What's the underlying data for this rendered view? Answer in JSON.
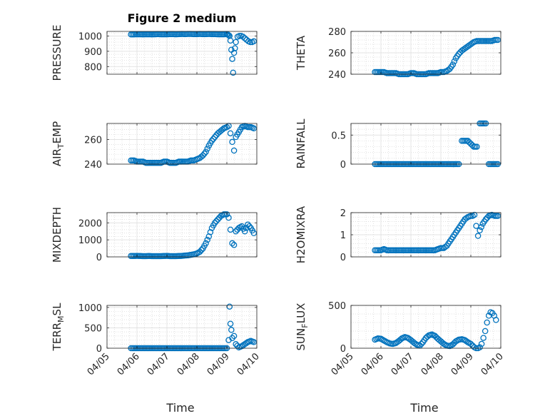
{
  "figure_title": "Figure 2 medium",
  "style": {
    "marker_color": "#0072BD",
    "grid_color": "#d6d6d6",
    "axis_color": "#262626"
  },
  "chart_data": [
    {
      "id": "pressure",
      "type": "scatter",
      "title": "Figure 2 medium",
      "ylabel_parts": [
        "PRESSURE"
      ],
      "yticks": [
        800,
        900,
        1000
      ],
      "ytick_labels": [
        "800",
        "900",
        "1000"
      ],
      "ylim": [
        750,
        1030
      ],
      "xlim": [
        "04/05",
        "04/10"
      ],
      "xticks": [
        "04/05",
        "04/06",
        "04/07",
        "04/08",
        "04/09",
        "04/10"
      ],
      "show_xticklabels": false,
      "grid": true,
      "marker": "open-circle",
      "x": [
        "04/05 19:12",
        "04/05 21:36",
        "04/06 00:00",
        "04/06 02:24",
        "04/06 04:48",
        "04/06 07:12",
        "04/06 09:36",
        "04/06 12:00",
        "04/06 14:24",
        "04/06 16:48",
        "04/06 19:12",
        "04/06 21:36",
        "04/07 00:00",
        "04/07 02:24",
        "04/07 04:48",
        "04/07 07:12",
        "04/07 09:36",
        "04/07 12:00",
        "04/07 14:24",
        "04/07 16:48",
        "04/07 19:12",
        "04/07 21:36",
        "04/08 00:00",
        "04/08 02:24",
        "04/08 04:48",
        "04/08 07:12",
        "04/08 09:36",
        "04/08 12:00",
        "04/08 14:24",
        "04/08 16:48",
        "04/08 19:12",
        "04/08 21:36",
        "04/09 00:00",
        "04/09 00:43",
        "04/09 01:26",
        "04/09 02:10",
        "04/09 02:53",
        "04/09 03:36",
        "04/09 04:19",
        "04/09 05:02",
        "04/09 05:46",
        "04/09 06:29",
        "04/09 07:12",
        "04/09 08:38",
        "04/09 10:05",
        "04/09 11:31",
        "04/09 12:58",
        "04/09 14:24",
        "04/09 15:50",
        "04/09 17:17",
        "04/09 18:43",
        "04/09 20:10",
        "04/09 21:36"
      ],
      "y": [
        1010,
        1010,
        1011,
        1011,
        1010,
        1011,
        1011,
        1010,
        1011,
        1012,
        1011,
        1011,
        1011,
        1012,
        1012,
        1011,
        1012,
        1013,
        1012,
        1013,
        1013,
        1012,
        1012,
        1013,
        1012,
        1012,
        1013,
        1012,
        1012,
        1011,
        1011,
        1011,
        1012,
        1010,
        1005,
        1000,
        970,
        910,
        850,
        760,
        890,
        920,
        960,
        995,
        1000,
        1000,
        995,
        985,
        975,
        965,
        960,
        960,
        965
      ]
    },
    {
      "id": "theta",
      "type": "scatter",
      "ylabel_parts": [
        "THETA"
      ],
      "yticks": [
        240,
        260,
        280
      ],
      "ytick_labels": [
        "240",
        "260",
        "280"
      ],
      "ylim": [
        240,
        280
      ],
      "xlim": [
        "04/05",
        "04/10"
      ],
      "xticks": [
        "04/05",
        "04/06",
        "04/07",
        "04/08",
        "04/09",
        "04/10"
      ],
      "show_xticklabels": false,
      "grid": true,
      "marker": "open-circle",
      "x": [
        "04/05 19:12",
        "04/05 21:36",
        "04/06 00:00",
        "04/06 02:24",
        "04/06 04:48",
        "04/06 07:12",
        "04/06 09:36",
        "04/06 12:00",
        "04/06 14:24",
        "04/06 16:48",
        "04/06 19:12",
        "04/06 21:36",
        "04/07 00:00",
        "04/07 02:24",
        "04/07 04:48",
        "04/07 07:12",
        "04/07 09:36",
        "04/07 12:00",
        "04/07 14:24",
        "04/07 16:48",
        "04/07 19:12",
        "04/07 21:36",
        "04/08 00:00",
        "04/08 02:24",
        "04/08 04:48",
        "04/08 07:12",
        "04/08 09:36",
        "04/08 12:00",
        "04/08 14:24",
        "04/08 16:48",
        "04/08 19:12",
        "04/08 21:36",
        "04/09 00:00",
        "04/09 02:24",
        "04/09 04:48",
        "04/09 07:12",
        "04/09 09:36",
        "04/09 12:00",
        "04/09 14:24",
        "04/09 16:48",
        "04/09 19:12",
        "04/09 21:36"
      ],
      "y": [
        242,
        242,
        242,
        242,
        241,
        241,
        241,
        241,
        240,
        240,
        240,
        240,
        241,
        241,
        240,
        240,
        240,
        240,
        241,
        241,
        241,
        241,
        242,
        242,
        243,
        245,
        249,
        255,
        259,
        262,
        264,
        266,
        268,
        270,
        271,
        271,
        271,
        271,
        271,
        271,
        272,
        272
      ]
    },
    {
      "id": "air_temp",
      "type": "scatter",
      "ylabel_parts": [
        "AIR",
        "T",
        "EMP"
      ],
      "yticks": [
        240,
        260
      ],
      "ytick_labels": [
        "240",
        "260"
      ],
      "ylim": [
        240,
        273
      ],
      "xlim": [
        "04/05",
        "04/10"
      ],
      "xticks": [
        "04/05",
        "04/06",
        "04/07",
        "04/08",
        "04/09",
        "04/10"
      ],
      "show_xticklabels": false,
      "grid": true,
      "marker": "open-circle",
      "x": [
        "04/05 19:12",
        "04/05 21:36",
        "04/06 00:00",
        "04/06 02:24",
        "04/06 04:48",
        "04/06 07:12",
        "04/06 09:36",
        "04/06 12:00",
        "04/06 14:24",
        "04/06 16:48",
        "04/06 19:12",
        "04/06 21:36",
        "04/07 00:00",
        "04/07 02:24",
        "04/07 04:48",
        "04/07 07:12",
        "04/07 09:36",
        "04/07 12:00",
        "04/07 14:24",
        "04/07 16:48",
        "04/07 19:12",
        "04/07 21:36",
        "04/08 00:00",
        "04/08 02:24",
        "04/08 04:48",
        "04/08 07:12",
        "04/08 09:36",
        "04/08 12:00",
        "04/08 14:24",
        "04/08 16:48",
        "04/08 19:12",
        "04/08 21:36",
        "04/09 00:00",
        "04/09 01:26",
        "04/09 02:53",
        "04/09 04:19",
        "04/09 05:46",
        "04/09 07:12",
        "04/09 09:36",
        "04/09 12:00",
        "04/09 14:24",
        "04/09 16:48",
        "04/09 19:12",
        "04/09 21:36"
      ],
      "y": [
        243,
        243,
        242,
        242,
        242,
        241,
        241,
        241,
        241,
        241,
        241,
        242,
        242,
        241,
        241,
        241,
        242,
        242,
        242,
        242,
        243,
        243,
        244,
        245,
        247,
        250,
        255,
        259,
        262,
        265,
        267,
        269,
        270,
        271,
        265,
        258,
        251,
        262,
        266,
        270,
        271,
        270,
        270,
        269
      ]
    },
    {
      "id": "rainfall",
      "type": "scatter",
      "ylabel_parts": [
        "RAINFALL"
      ],
      "yticks": [
        0,
        0.5
      ],
      "ytick_labels": [
        "0",
        "0.5"
      ],
      "ylim": [
        0,
        0.7
      ],
      "xlim": [
        "04/05",
        "04/10"
      ],
      "xticks": [
        "04/05",
        "04/06",
        "04/07",
        "04/08",
        "04/09",
        "04/10"
      ],
      "show_xticklabels": false,
      "grid": true,
      "marker": "open-circle",
      "x": [
        "04/05 19:12",
        "04/06 00:00",
        "04/06 04:48",
        "04/06 09:36",
        "04/06 14:24",
        "04/06 19:12",
        "04/07 00:00",
        "04/07 04:48",
        "04/07 09:36",
        "04/07 14:24",
        "04/07 19:12",
        "04/08 00:00",
        "04/08 04:48",
        "04/08 09:36",
        "04/08 12:00",
        "04/08 14:24",
        "04/08 16:48",
        "04/08 19:12",
        "04/08 21:36",
        "04/09 00:00",
        "04/09 02:24",
        "04/09 04:48",
        "04/09 07:12",
        "04/09 09:36",
        "04/09 12:00",
        "04/09 14:24",
        "04/09 16:48",
        "04/09 19:12",
        "04/09 21:36"
      ],
      "y": [
        0,
        0,
        0,
        0,
        0,
        0,
        0,
        0,
        0,
        0,
        0,
        0,
        0,
        0,
        0,
        0,
        0.4,
        0.4,
        0.4,
        0.35,
        0.3,
        0.3,
        0.7,
        0.7,
        0.7,
        0,
        0,
        0,
        0
      ]
    },
    {
      "id": "mixdepth",
      "type": "scatter",
      "ylabel_parts": [
        "MIXDEPTH"
      ],
      "yticks": [
        0,
        1000,
        2000
      ],
      "ytick_labels": [
        "0",
        "1000",
        "2000"
      ],
      "ylim": [
        0,
        2600
      ],
      "xlim": [
        "04/05",
        "04/10"
      ],
      "xticks": [
        "04/05",
        "04/06",
        "04/07",
        "04/08",
        "04/09",
        "04/10"
      ],
      "show_xticklabels": false,
      "grid": true,
      "marker": "open-circle",
      "x": [
        "04/05 19:12",
        "04/05 21:36",
        "04/06 00:00",
        "04/06 02:24",
        "04/06 04:48",
        "04/06 07:12",
        "04/06 09:36",
        "04/06 12:00",
        "04/06 14:24",
        "04/06 16:48",
        "04/06 19:12",
        "04/06 21:36",
        "04/07 00:00",
        "04/07 02:24",
        "04/07 04:48",
        "04/07 07:12",
        "04/07 09:36",
        "04/07 12:00",
        "04/07 14:24",
        "04/07 16:48",
        "04/07 19:12",
        "04/07 21:36",
        "04/08 00:00",
        "04/08 02:24",
        "04/08 04:48",
        "04/08 07:12",
        "04/08 09:36",
        "04/08 12:00",
        "04/08 14:24",
        "04/08 16:48",
        "04/08 19:12",
        "04/08 21:36",
        "04/09 00:00",
        "04/09 01:26",
        "04/09 02:53",
        "04/09 04:19",
        "04/09 05:46",
        "04/09 07:12",
        "04/09 09:36",
        "04/09 12:00",
        "04/09 14:24",
        "04/09 16:48",
        "04/09 19:12",
        "04/09 21:36"
      ],
      "y": [
        50,
        50,
        60,
        50,
        40,
        40,
        50,
        40,
        40,
        40,
        40,
        50,
        60,
        40,
        40,
        40,
        50,
        60,
        80,
        90,
        120,
        150,
        200,
        300,
        500,
        800,
        1200,
        1700,
        2000,
        2200,
        2400,
        2500,
        2500,
        2300,
        1600,
        800,
        700,
        1500,
        1700,
        1800,
        1500,
        1900,
        1700,
        1400
      ]
    },
    {
      "id": "h2omixra",
      "type": "scatter",
      "ylabel_parts": [
        "H2OMIXRA"
      ],
      "yticks": [
        0,
        1,
        2
      ],
      "ytick_labels": [
        "0",
        "1",
        "2"
      ],
      "ylim": [
        0,
        2
      ],
      "xlim": [
        "04/05",
        "04/10"
      ],
      "xticks": [
        "04/05",
        "04/06",
        "04/07",
        "04/08",
        "04/09",
        "04/10"
      ],
      "show_xticklabels": false,
      "grid": true,
      "marker": "open-circle",
      "x": [
        "04/05 19:12",
        "04/05 21:36",
        "04/06 00:00",
        "04/06 02:24",
        "04/06 04:48",
        "04/06 07:12",
        "04/06 09:36",
        "04/06 12:00",
        "04/06 14:24",
        "04/06 16:48",
        "04/06 19:12",
        "04/06 21:36",
        "04/07 00:00",
        "04/07 02:24",
        "04/07 04:48",
        "04/07 07:12",
        "04/07 09:36",
        "04/07 12:00",
        "04/07 14:24",
        "04/07 16:48",
        "04/07 19:12",
        "04/07 21:36",
        "04/08 00:00",
        "04/08 02:24",
        "04/08 04:48",
        "04/08 07:12",
        "04/08 09:36",
        "04/08 12:00",
        "04/08 14:24",
        "04/08 16:48",
        "04/08 19:12",
        "04/08 21:36",
        "04/09 00:00",
        "04/09 01:26",
        "04/09 02:53",
        "04/09 04:19",
        "04/09 05:46",
        "04/09 07:12",
        "04/09 09:36",
        "04/09 12:00",
        "04/09 14:24",
        "04/09 16:48",
        "04/09 19:12",
        "04/09 21:36"
      ],
      "y": [
        0.3,
        0.3,
        0.3,
        0.35,
        0.3,
        0.3,
        0.3,
        0.3,
        0.3,
        0.3,
        0.3,
        0.3,
        0.3,
        0.3,
        0.3,
        0.3,
        0.3,
        0.3,
        0.3,
        0.3,
        0.3,
        0.35,
        0.4,
        0.4,
        0.5,
        0.7,
        0.9,
        1.1,
        1.3,
        1.5,
        1.7,
        1.8,
        1.85,
        1.85,
        1.9,
        1.4,
        0.95,
        1.2,
        1.5,
        1.7,
        1.85,
        1.9,
        1.85,
        1.85
      ]
    },
    {
      "id": "terr_msl",
      "type": "scatter",
      "ylabel_parts": [
        "TERR",
        "M",
        "SL"
      ],
      "yticks": [
        0,
        500,
        1000
      ],
      "ytick_labels": [
        "0",
        "500",
        "1000"
      ],
      "ylim": [
        0,
        1050
      ],
      "xlim": [
        "04/05",
        "04/10"
      ],
      "xticks": [
        "04/05",
        "04/06",
        "04/07",
        "04/08",
        "04/09",
        "04/10"
      ],
      "xtick_labels": [
        "04/05",
        "04/06",
        "04/07",
        "04/08",
        "04/09",
        "04/10"
      ],
      "show_xticklabels": true,
      "xlabel": "Time",
      "grid": true,
      "marker": "open-circle",
      "x": [
        "04/05 19:12",
        "04/06 00:00",
        "04/06 04:48",
        "04/06 09:36",
        "04/06 14:24",
        "04/06 19:12",
        "04/07 00:00",
        "04/07 04:48",
        "04/07 09:36",
        "04/07 14:24",
        "04/07 19:12",
        "04/08 00:00",
        "04/08 04:48",
        "04/08 09:36",
        "04/08 14:24",
        "04/08 19:12",
        "04/08 21:36",
        "04/09 00:00",
        "04/09 01:26",
        "04/09 02:10",
        "04/09 02:53",
        "04/09 03:36",
        "04/09 04:19",
        "04/09 05:46",
        "04/09 07:12",
        "04/09 09:36",
        "04/09 12:00",
        "04/09 14:24",
        "04/09 16:48",
        "04/09 19:12",
        "04/09 21:36"
      ],
      "y": [
        0,
        0,
        0,
        0,
        0,
        0,
        0,
        0,
        0,
        0,
        0,
        0,
        0,
        0,
        0,
        0,
        0,
        0,
        200,
        1020,
        600,
        450,
        250,
        300,
        100,
        20,
        50,
        100,
        150,
        180,
        150
      ]
    },
    {
      "id": "sun_flux",
      "type": "scatter",
      "ylabel_parts": [
        "SUN",
        "F",
        "LUX"
      ],
      "yticks": [
        0,
        500
      ],
      "ytick_labels": [
        "0",
        "500"
      ],
      "ylim": [
        0,
        500
      ],
      "xlim": [
        "04/05",
        "04/10"
      ],
      "xticks": [
        "04/05",
        "04/06",
        "04/07",
        "04/08",
        "04/09",
        "04/10"
      ],
      "xtick_labels": [
        "04/05",
        "04/06",
        "04/07",
        "04/08",
        "04/09",
        "04/10"
      ],
      "show_xticklabels": true,
      "xlabel": "Time",
      "grid": true,
      "marker": "open-circle",
      "x": [
        "04/05 19:12",
        "04/05 21:36",
        "04/06 00:00",
        "04/06 02:24",
        "04/06 04:48",
        "04/06 07:12",
        "04/06 09:36",
        "04/06 12:00",
        "04/06 14:24",
        "04/06 16:48",
        "04/06 19:12",
        "04/06 21:36",
        "04/07 00:00",
        "04/07 02:24",
        "04/07 04:48",
        "04/07 07:12",
        "04/07 09:36",
        "04/07 12:00",
        "04/07 14:24",
        "04/07 16:48",
        "04/07 19:12",
        "04/07 21:36",
        "04/08 00:00",
        "04/08 02:24",
        "04/08 04:48",
        "04/08 07:12",
        "04/08 09:36",
        "04/08 12:00",
        "04/08 14:24",
        "04/08 16:48",
        "04/08 19:12",
        "04/08 21:36",
        "04/09 00:00",
        "04/09 01:26",
        "04/09 02:53",
        "04/09 04:19",
        "04/09 05:46",
        "04/09 07:12",
        "04/09 08:38",
        "04/09 10:05",
        "04/09 11:31",
        "04/09 12:58",
        "04/09 14:24",
        "04/09 15:50",
        "04/09 17:17",
        "04/09 18:43",
        "04/09 20:10"
      ],
      "y": [
        100,
        115,
        110,
        90,
        70,
        55,
        50,
        60,
        85,
        115,
        130,
        120,
        95,
        65,
        40,
        30,
        70,
        120,
        150,
        160,
        145,
        110,
        80,
        50,
        30,
        25,
        45,
        80,
        100,
        105,
        95,
        70,
        50,
        30,
        10,
        0,
        0,
        10,
        50,
        120,
        200,
        300,
        380,
        420,
        410,
        380,
        330
      ]
    }
  ]
}
